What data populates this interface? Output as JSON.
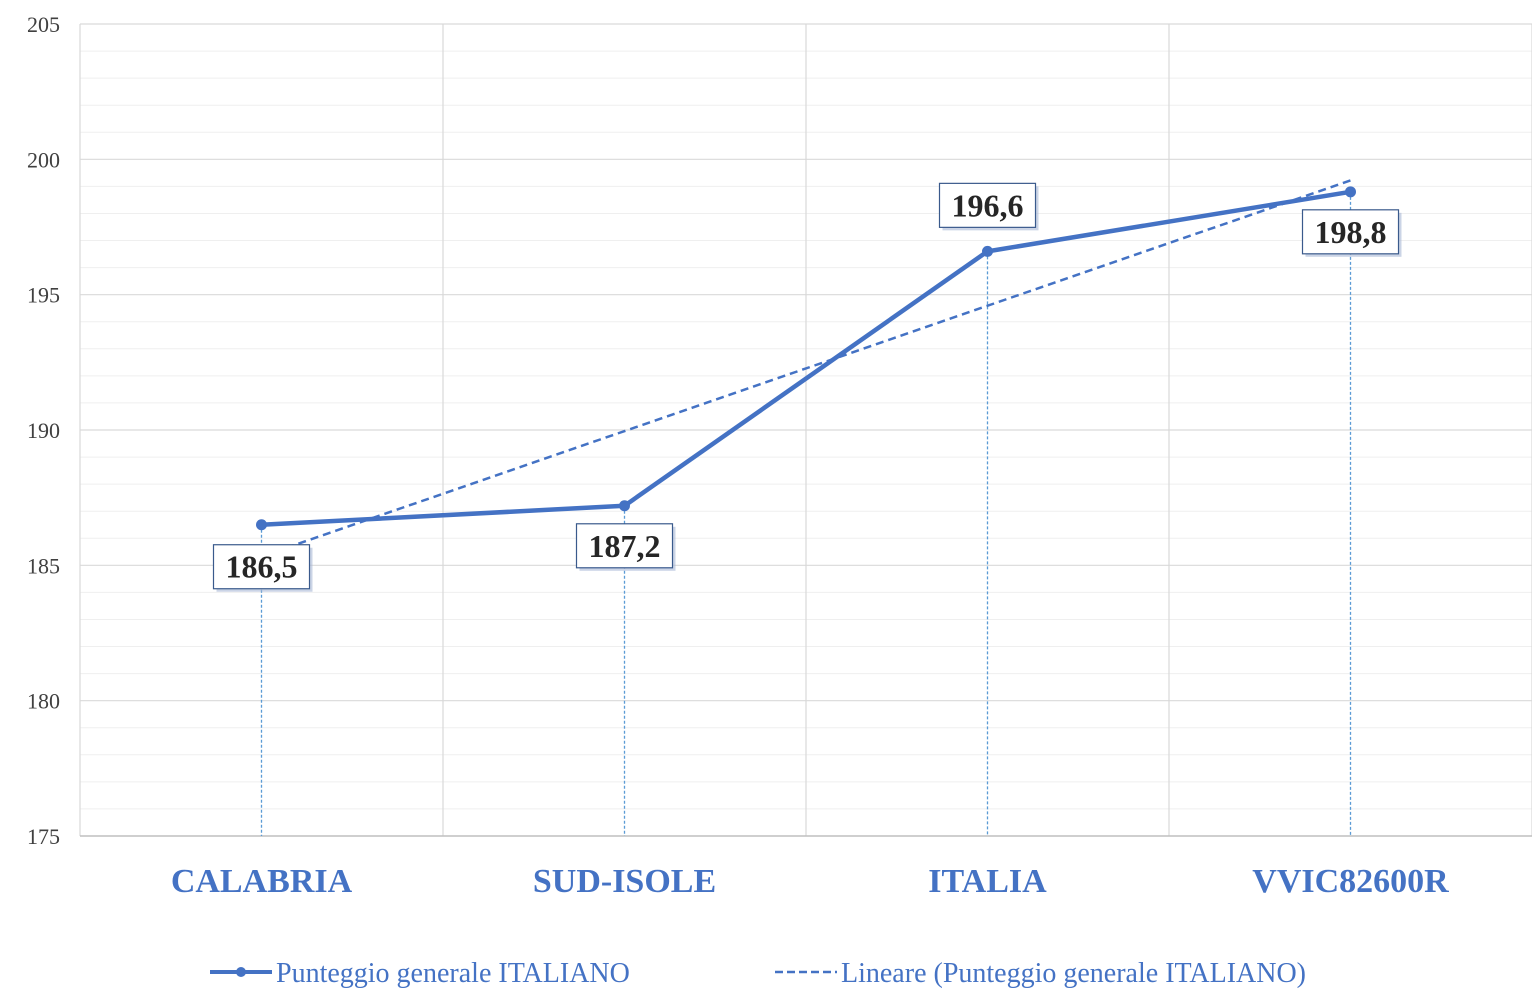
{
  "chart_data": {
    "type": "line",
    "categories": [
      "CALABRIA",
      "SUD-ISOLE",
      "ITALIA",
      "VVIC82600R"
    ],
    "series": [
      {
        "name": "Punteggio generale ITALIANO",
        "values": [
          186.5,
          187.2,
          196.6,
          198.8
        ],
        "labels": [
          "186,5",
          "187,2",
          "196,6",
          "198,8"
        ]
      }
    ],
    "trendline": {
      "name": "Lineare (Punteggio generale ITALIANO)",
      "type": "linear"
    },
    "y_ticks": [
      "175",
      "180",
      "185",
      "190",
      "195",
      "200",
      "205"
    ],
    "ylim": [
      175,
      205
    ],
    "grid": true,
    "legend_position": "bottom",
    "colors": {
      "series": "#4472C4",
      "trend": "#4472C4",
      "drop_lines": "#5B9BD5",
      "axis_labels": "#4472C4",
      "grid": "#d9d9d9"
    }
  }
}
